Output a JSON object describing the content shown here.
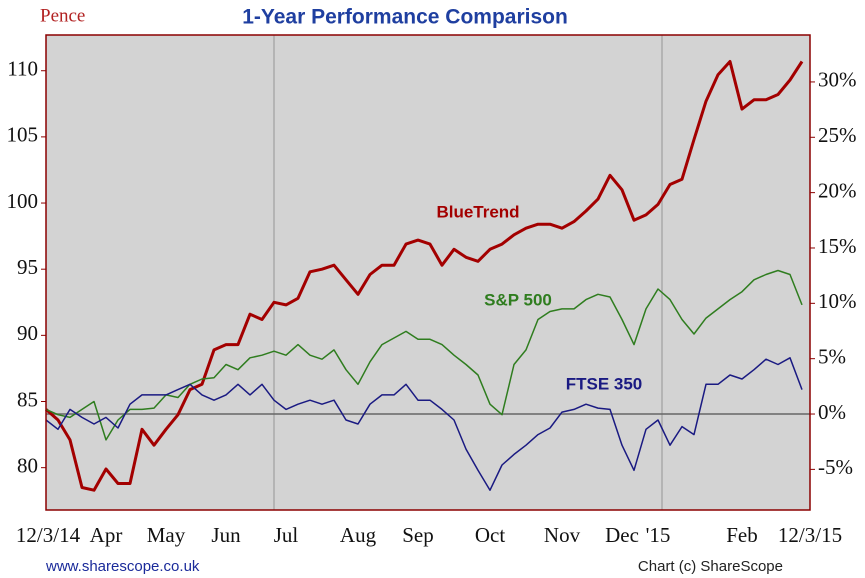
{
  "chart_data": {
    "type": "line",
    "title": "1-Year Performance Comparison",
    "y_label": "Pence",
    "categories": [
      "12/3/14",
      null,
      null,
      null,
      null,
      "Apr",
      null,
      null,
      null,
      null,
      "May",
      null,
      null,
      null,
      null,
      "Jun",
      null,
      null,
      null,
      null,
      "Jul",
      null,
      null,
      null,
      null,
      null,
      "Aug",
      null,
      null,
      null,
      null,
      "Sep",
      null,
      null,
      null,
      null,
      null,
      "Oct",
      null,
      null,
      null,
      null,
      null,
      "Nov",
      null,
      null,
      null,
      null,
      "Dec",
      null,
      null,
      "'15",
      null,
      null,
      null,
      null,
      null,
      null,
      "Feb",
      null,
      null,
      null,
      null,
      "12/3/15"
    ],
    "series": [
      {
        "name": "BlueTrend",
        "color": "#a30000",
        "values": [
          84.4,
          83.6,
          82.1,
          78.5,
          78.3,
          79.9,
          78.8,
          78.8,
          82.9,
          81.7,
          82.9,
          84.0,
          85.9,
          86.3,
          88.9,
          89.3,
          89.3,
          91.6,
          91.2,
          92.5,
          92.3,
          92.8,
          94.8,
          95.0,
          95.3,
          94.2,
          93.1,
          94.6,
          95.3,
          95.3,
          96.9,
          97.2,
          96.9,
          95.3,
          96.5,
          95.9,
          95.6,
          96.5,
          96.9,
          97.6,
          98.1,
          98.4,
          98.4,
          98.1,
          98.6,
          99.4,
          100.3,
          102.1,
          101.0,
          98.7,
          99.1,
          99.9,
          101.4,
          101.8,
          104.8,
          107.7,
          109.7,
          110.7,
          107.1,
          107.8,
          107.8,
          108.2,
          109.3,
          110.7
        ]
      },
      {
        "name": "S&P 500",
        "color": "#2f7d1f",
        "values": [
          84.4,
          84.0,
          83.8,
          84.4,
          85.0,
          82.1,
          83.6,
          84.4,
          84.4,
          84.5,
          85.5,
          85.3,
          86.3,
          86.7,
          86.8,
          87.8,
          87.4,
          88.3,
          88.5,
          88.8,
          88.5,
          89.3,
          88.5,
          88.2,
          88.9,
          87.4,
          86.3,
          88.0,
          89.3,
          89.8,
          90.3,
          89.7,
          89.7,
          89.3,
          88.5,
          87.8,
          87.0,
          84.8,
          84.0,
          87.8,
          88.9,
          91.2,
          91.8,
          92.0,
          92.0,
          92.7,
          93.1,
          92.9,
          91.2,
          89.3,
          92.0,
          93.5,
          92.7,
          91.2,
          90.1,
          91.3,
          92.0,
          92.7,
          93.3,
          94.2,
          94.6,
          94.9,
          94.6,
          92.3
        ]
      },
      {
        "name": "FTSE 350",
        "color": "#1a1a82",
        "values": [
          83.6,
          82.9,
          84.4,
          83.8,
          83.3,
          83.8,
          83.0,
          84.8,
          85.5,
          85.5,
          85.5,
          85.9,
          86.3,
          85.5,
          85.1,
          85.5,
          86.3,
          85.5,
          86.3,
          85.1,
          84.4,
          84.8,
          85.1,
          84.8,
          85.1,
          83.6,
          83.3,
          84.8,
          85.5,
          85.5,
          86.3,
          85.1,
          85.1,
          84.4,
          83.6,
          81.4,
          79.8,
          78.3,
          80.2,
          81.0,
          81.7,
          82.5,
          83.0,
          84.2,
          84.4,
          84.8,
          84.5,
          84.4,
          81.7,
          79.8,
          82.9,
          83.6,
          81.7,
          83.1,
          82.5,
          86.3,
          86.3,
          87.0,
          86.7,
          87.4,
          88.2,
          87.8,
          88.3,
          85.9
        ]
      }
    ],
    "ylim": [
      76.8,
      112.7
    ],
    "yticks": [
      80,
      85,
      90,
      95,
      100,
      105,
      110
    ],
    "y2lim": [
      -8.67,
      34.24
    ],
    "y2ticks": [
      {
        "value": -5,
        "label": "-5%"
      },
      {
        "value": 0,
        "label": "0%"
      },
      {
        "value": 5,
        "label": "5%"
      },
      {
        "value": 10,
        "label": "10%"
      },
      {
        "value": 15,
        "label": "15%"
      },
      {
        "value": 20,
        "label": "20%"
      },
      {
        "value": 25,
        "label": "25%"
      },
      {
        "value": 30,
        "label": "30%"
      }
    ],
    "footer_left": "www.sharescope.co.uk",
    "footer_right": "Chart (c) ShareScope"
  }
}
